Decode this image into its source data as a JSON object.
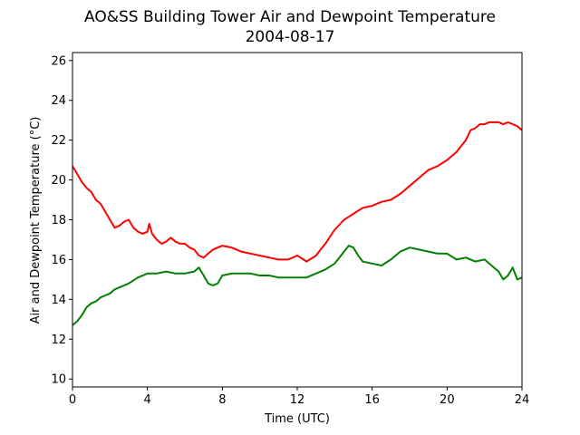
{
  "chart_data": {
    "type": "line",
    "title": "AO&SS Building Tower Air and Dewpoint Temperature",
    "subtitle": "2004-08-17",
    "xlabel": "Time (UTC)",
    "ylabel": "Air and Dewpoint Temperature (°C)",
    "xlim": [
      0,
      24
    ],
    "ylim": [
      9.6,
      26.4
    ],
    "xticks": [
      0,
      4,
      8,
      12,
      16,
      20,
      24
    ],
    "yticks": [
      10,
      12,
      14,
      16,
      18,
      20,
      22,
      24,
      26
    ],
    "grid": false,
    "series": [
      {
        "color": "#ff0000",
        "x": [
          0,
          0.25,
          0.5,
          0.75,
          1.0,
          1.25,
          1.5,
          1.75,
          2.0,
          2.25,
          2.5,
          2.75,
          3.0,
          3.25,
          3.5,
          3.75,
          4.0,
          4.1,
          4.25,
          4.5,
          4.75,
          5.0,
          5.25,
          5.5,
          5.75,
          6.0,
          6.25,
          6.5,
          6.75,
          7.0,
          7.25,
          7.5,
          7.75,
          8.0,
          8.5,
          9.0,
          9.5,
          10.0,
          10.5,
          11.0,
          11.5,
          12.0,
          12.5,
          13.0,
          13.5,
          14.0,
          14.5,
          15.0,
          15.5,
          16.0,
          16.5,
          17.0,
          17.5,
          18.0,
          18.5,
          19.0,
          19.5,
          20.0,
          20.5,
          21.0,
          21.25,
          21.5,
          21.75,
          22.0,
          22.25,
          22.5,
          22.75,
          23.0,
          23.25,
          23.5,
          23.75,
          24.0
        ],
        "y": [
          20.7,
          20.3,
          19.9,
          19.6,
          19.4,
          19.0,
          18.8,
          18.4,
          18.0,
          17.6,
          17.7,
          17.9,
          18.0,
          17.6,
          17.4,
          17.3,
          17.4,
          17.8,
          17.3,
          17.0,
          16.8,
          16.9,
          17.1,
          16.9,
          16.8,
          16.8,
          16.6,
          16.5,
          16.2,
          16.1,
          16.3,
          16.5,
          16.6,
          16.7,
          16.6,
          16.4,
          16.3,
          16.2,
          16.1,
          16.0,
          16.0,
          16.2,
          15.9,
          16.2,
          16.8,
          17.5,
          18.0,
          18.3,
          18.6,
          18.7,
          18.9,
          19.0,
          19.3,
          19.7,
          20.1,
          20.5,
          20.7,
          21.0,
          21.4,
          22.0,
          22.5,
          22.6,
          22.8,
          22.8,
          22.9,
          22.9,
          22.9,
          22.8,
          22.9,
          22.8,
          22.7,
          22.5
        ]
      },
      {
        "color": "#008000",
        "x": [
          0,
          0.25,
          0.5,
          0.75,
          1.0,
          1.25,
          1.5,
          1.75,
          2.0,
          2.25,
          2.5,
          2.75,
          3.0,
          3.5,
          4.0,
          4.5,
          5.0,
          5.5,
          6.0,
          6.5,
          6.75,
          7.0,
          7.25,
          7.5,
          7.75,
          8.0,
          8.5,
          9.0,
          9.5,
          10.0,
          10.5,
          11.0,
          11.5,
          12.0,
          12.5,
          13.0,
          13.5,
          14.0,
          14.5,
          14.75,
          15.0,
          15.25,
          15.5,
          16.0,
          16.5,
          17.0,
          17.5,
          18.0,
          18.5,
          19.0,
          19.5,
          20.0,
          20.5,
          21.0,
          21.5,
          22.0,
          22.5,
          22.75,
          23.0,
          23.25,
          23.5,
          23.75,
          24.0
        ],
        "y": [
          12.7,
          12.9,
          13.2,
          13.6,
          13.8,
          13.9,
          14.1,
          14.2,
          14.3,
          14.5,
          14.6,
          14.7,
          14.8,
          15.1,
          15.3,
          15.3,
          15.4,
          15.3,
          15.3,
          15.4,
          15.6,
          15.2,
          14.8,
          14.7,
          14.8,
          15.2,
          15.3,
          15.3,
          15.3,
          15.2,
          15.2,
          15.1,
          15.1,
          15.1,
          15.1,
          15.3,
          15.5,
          15.8,
          16.4,
          16.7,
          16.6,
          16.2,
          15.9,
          15.8,
          15.7,
          16.0,
          16.4,
          16.6,
          16.5,
          16.4,
          16.3,
          16.3,
          16.0,
          16.1,
          15.9,
          16.0,
          15.6,
          15.4,
          15.0,
          15.2,
          15.6,
          15.0,
          15.1
        ]
      }
    ]
  }
}
